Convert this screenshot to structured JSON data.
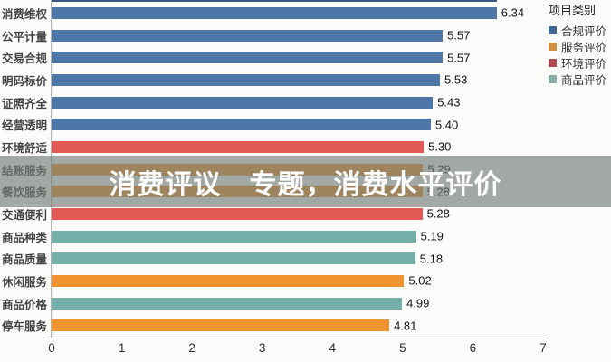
{
  "watermark": {
    "text": "消费评议　专题，消费水平评价"
  },
  "legend": {
    "title": "项目类别",
    "items": [
      {
        "label": "合规评价",
        "swatch": "#3f6496"
      },
      {
        "label": "服务评价",
        "swatch": "#d08f3f"
      },
      {
        "label": "环境评价",
        "swatch": "#ad4a52"
      },
      {
        "label": "商品评价",
        "swatch": "#87ada6"
      }
    ]
  },
  "chart_data": {
    "type": "bar",
    "orientation": "horizontal",
    "title": "",
    "xlabel": "",
    "ylabel": "",
    "xlim": [
      0,
      7
    ],
    "xticks": [
      0,
      1,
      2,
      3,
      4,
      5,
      6,
      7
    ],
    "grid": false,
    "legend_position": "top-right",
    "colors": {
      "合规评价": "#4e76a7",
      "服务评价": "#ef9330",
      "环境评价": "#e25955",
      "商品评价": "#74b0a9"
    },
    "rows": [
      {
        "label": "消费维权",
        "value": 6.34,
        "display": "6.34",
        "category": "合规评价"
      },
      {
        "label": "公平计量",
        "value": 5.57,
        "display": "5.57",
        "category": "合规评价"
      },
      {
        "label": "交易合规",
        "value": 5.57,
        "display": "5.57",
        "category": "合规评价"
      },
      {
        "label": "明码标价",
        "value": 5.53,
        "display": "5.53",
        "category": "合规评价"
      },
      {
        "label": "证照齐全",
        "value": 5.43,
        "display": "5.43",
        "category": "合规评价"
      },
      {
        "label": "经营透明",
        "value": 5.4,
        "display": "5.40",
        "category": "合规评价"
      },
      {
        "label": "环境舒适",
        "value": 5.3,
        "display": "5.30",
        "category": "环境评价"
      },
      {
        "label": "结账服务",
        "value": 5.29,
        "display": "5.29",
        "category": "服务评价"
      },
      {
        "label": "餐饮服务",
        "value": 5.28,
        "display": "5.28",
        "category": "服务评价"
      },
      {
        "label": "交通便利",
        "value": 5.28,
        "display": "5.28",
        "category": "环境评价"
      },
      {
        "label": "商品种类",
        "value": 5.19,
        "display": "5.19",
        "category": "商品评价"
      },
      {
        "label": "商品质量",
        "value": 5.18,
        "display": "5.18",
        "category": "商品评价"
      },
      {
        "label": "休闲服务",
        "value": 5.02,
        "display": "5.02",
        "category": "服务评价"
      },
      {
        "label": "商品价格",
        "value": 4.99,
        "display": "4.99",
        "category": "商品评价"
      },
      {
        "label": "停车服务",
        "value": 4.81,
        "display": "4.81",
        "category": "服务评价"
      }
    ]
  }
}
